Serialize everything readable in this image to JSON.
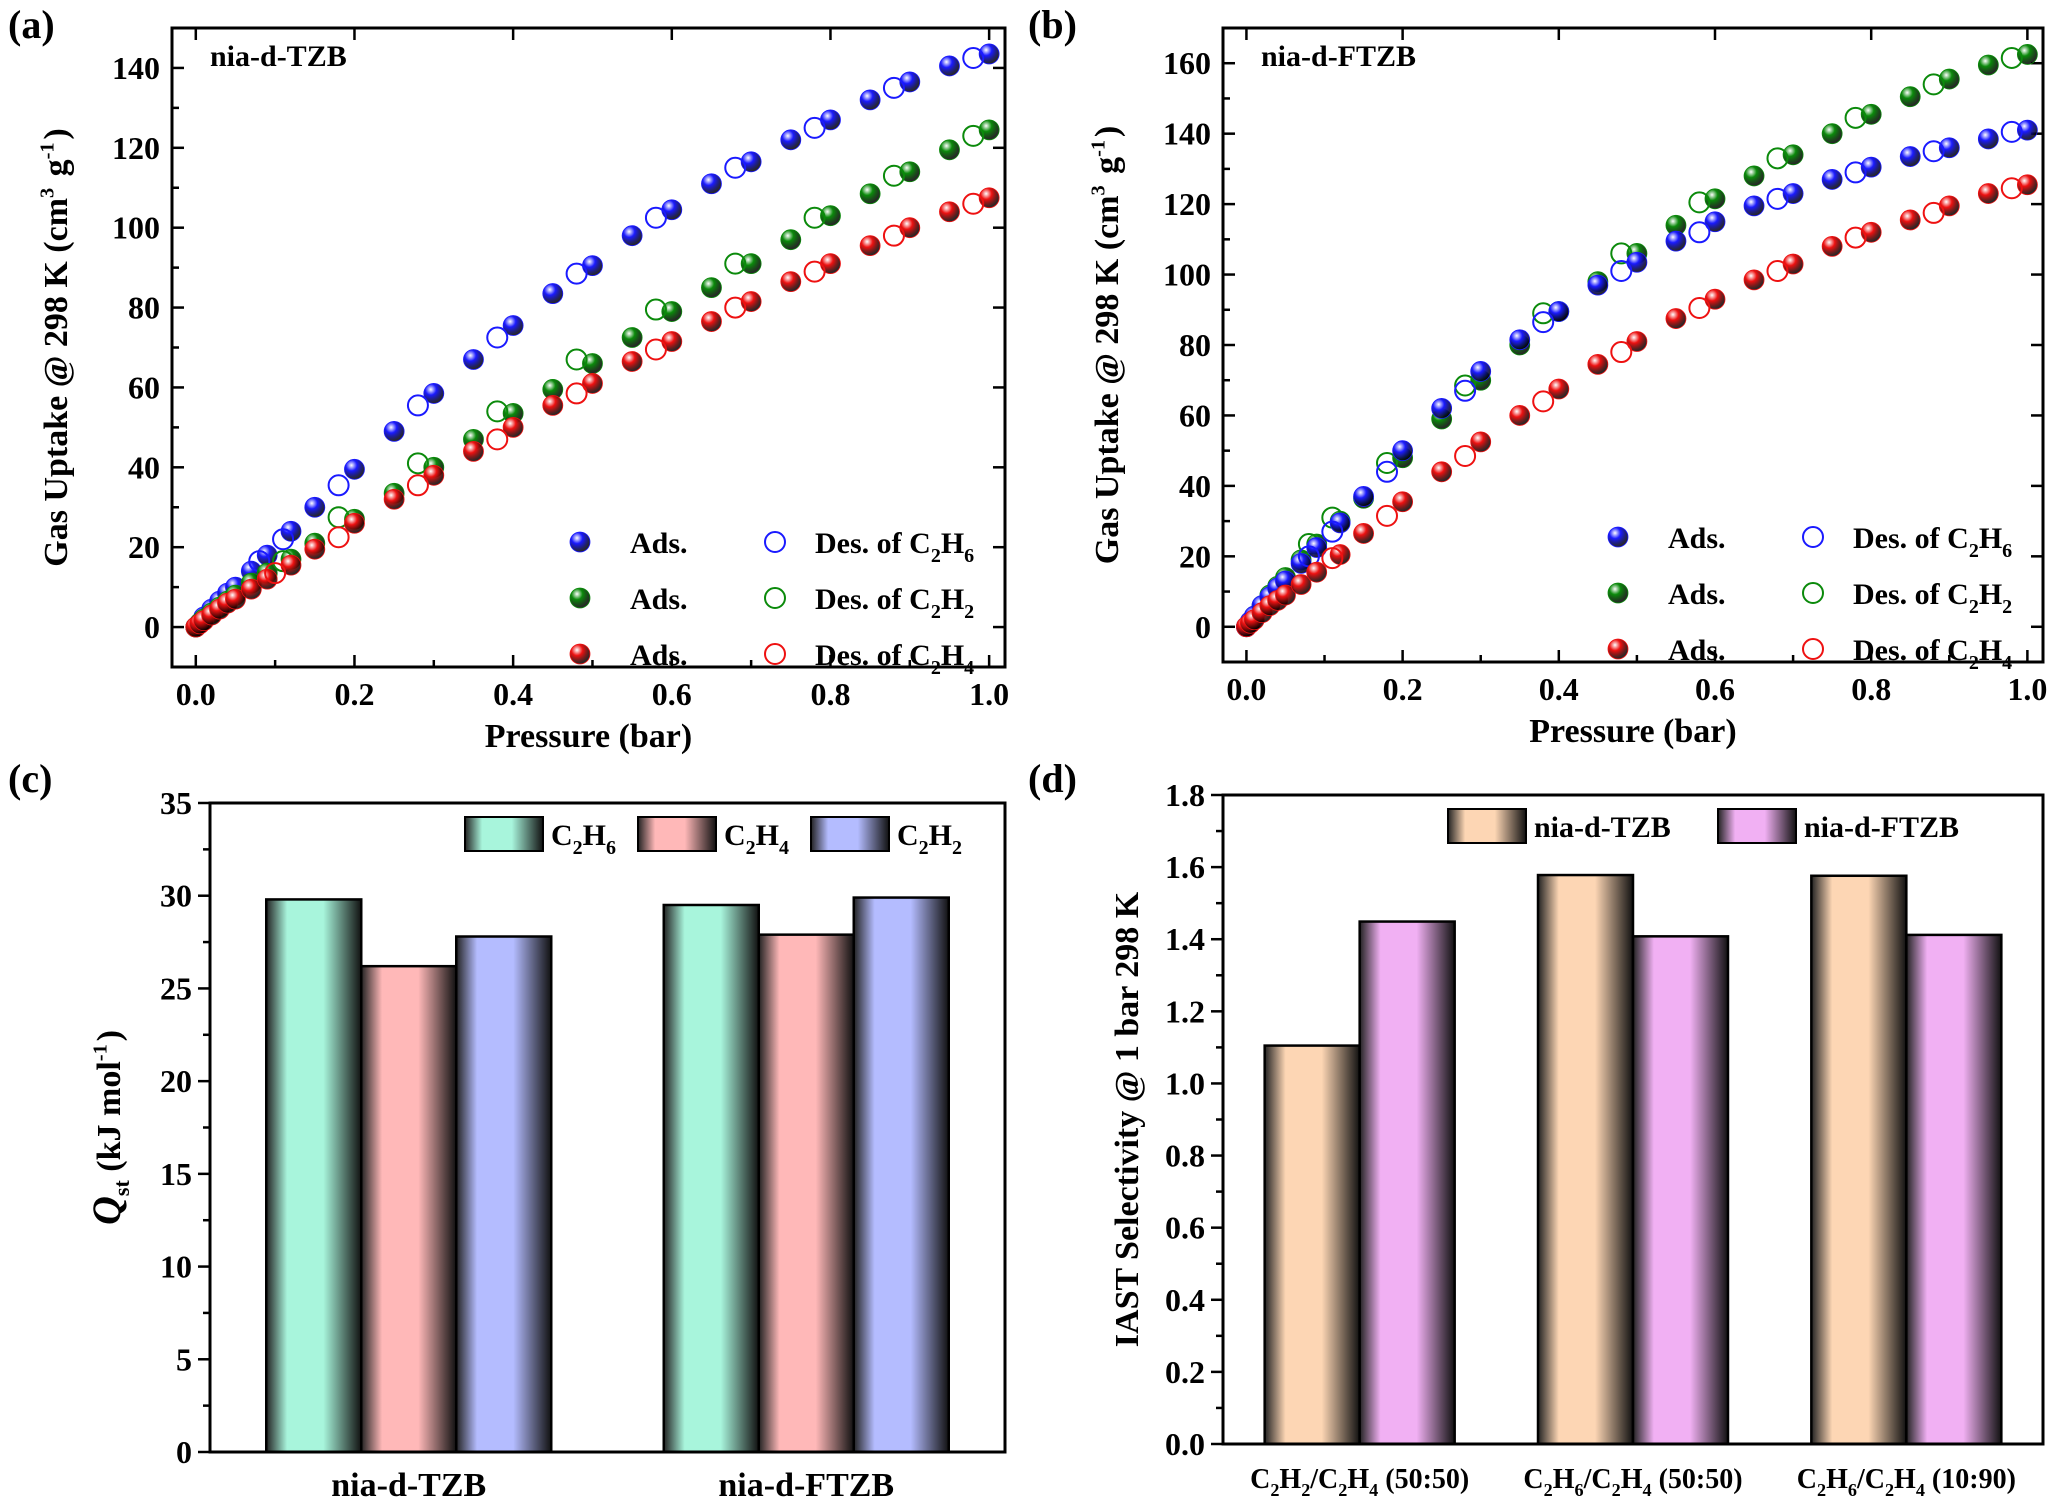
{
  "figure": {
    "panels": [
      "(a)",
      "(b)",
      "(c)",
      "(d)"
    ]
  },
  "colors": {
    "C2H6": "#1a1aff",
    "C2H2": "#0b8a0b",
    "C2H4": "#ee1111",
    "bar_C2H6": "#a8f5dc",
    "bar_C2H4": "#ffb8b8",
    "bar_C2H2": "#b4bcff",
    "bar_TZB": "#fdd6b4",
    "bar_FTZB": "#f1b0f3"
  },
  "chart_data": [
    {
      "id": "a",
      "type": "scatter",
      "panel_label": "(a)",
      "title": "nia-d-TZB",
      "xlabel": "Pressure (bar)",
      "ylabel": "Gas Uptake @ 298 K (cm3 g-1)",
      "xlim": [
        -0.03,
        1.02
      ],
      "ylim": [
        -10,
        150
      ],
      "xticks": [
        0.0,
        0.2,
        0.4,
        0.6,
        0.8,
        1.0
      ],
      "xtick_labels": [
        "0.0",
        "0.2",
        "0.4",
        "0.6",
        "0.8",
        "1.0"
      ],
      "yticks": [
        0,
        20,
        40,
        60,
        80,
        100,
        120,
        140
      ],
      "ytick_labels": [
        "0",
        "20",
        "40",
        "60",
        "80",
        "100",
        "120",
        "140"
      ],
      "legend_position": "bottom-right",
      "legend": [
        {
          "ads": "Ads.",
          "des": "Des. of ",
          "gas": "C2H6",
          "color": "C2H6"
        },
        {
          "ads": "Ads.",
          "des": "Des. of ",
          "gas": "C2H2",
          "color": "C2H2"
        },
        {
          "ads": "Ads.",
          "des": "Des. of ",
          "gas": "C2H4",
          "color": "C2H4"
        }
      ],
      "series": [
        {
          "gas": "C2H6",
          "mode": "adsorption",
          "color": "C2H6",
          "x": [
            0.0,
            0.005,
            0.01,
            0.02,
            0.03,
            0.04,
            0.05,
            0.07,
            0.09,
            0.12,
            0.15,
            0.2,
            0.25,
            0.3,
            0.35,
            0.4,
            0.45,
            0.5,
            0.55,
            0.6,
            0.65,
            0.7,
            0.75,
            0.8,
            0.85,
            0.9,
            0.95,
            1.0
          ],
          "y": [
            0,
            1,
            2.5,
            4.5,
            6.5,
            8.5,
            10,
            14,
            18,
            24,
            30,
            39.5,
            49,
            58.5,
            67,
            75.5,
            83.5,
            90.5,
            98,
            104.5,
            111,
            116.5,
            122,
            127,
            132,
            136.5,
            140.5,
            143.5
          ]
        },
        {
          "gas": "C2H6",
          "mode": "desorption",
          "color": "C2H6",
          "x": [
            0.98,
            0.88,
            0.78,
            0.68,
            0.58,
            0.48,
            0.38,
            0.28,
            0.18,
            0.11,
            0.08
          ],
          "y": [
            142.5,
            135,
            125,
            115,
            102.5,
            88.5,
            72.5,
            55.5,
            35.5,
            22,
            16.5
          ]
        },
        {
          "gas": "C2H2",
          "mode": "adsorption",
          "color": "C2H2",
          "x": [
            0.0,
            0.005,
            0.01,
            0.02,
            0.03,
            0.04,
            0.05,
            0.07,
            0.09,
            0.12,
            0.15,
            0.2,
            0.25,
            0.3,
            0.35,
            0.4,
            0.45,
            0.5,
            0.55,
            0.6,
            0.65,
            0.7,
            0.75,
            0.8,
            0.85,
            0.9,
            0.95,
            1.0
          ],
          "y": [
            0,
            1,
            2,
            3.5,
            5,
            6.5,
            8,
            11,
            13.5,
            17,
            21,
            27,
            33.5,
            40,
            47,
            53.5,
            59.5,
            66,
            72.5,
            79,
            85,
            91,
            97,
            103,
            108.5,
            114,
            119.5,
            124.5
          ]
        },
        {
          "gas": "C2H2",
          "mode": "desorption",
          "color": "C2H2",
          "x": [
            0.98,
            0.88,
            0.78,
            0.68,
            0.58,
            0.48,
            0.38,
            0.28,
            0.18,
            0.11
          ],
          "y": [
            123,
            113,
            102.5,
            91,
            79.5,
            67,
            54,
            41,
            27.5,
            16.5
          ]
        },
        {
          "gas": "C2H4",
          "mode": "adsorption",
          "color": "C2H4",
          "x": [
            0.0,
            0.005,
            0.01,
            0.02,
            0.03,
            0.04,
            0.05,
            0.07,
            0.09,
            0.12,
            0.15,
            0.2,
            0.25,
            0.3,
            0.35,
            0.4,
            0.45,
            0.5,
            0.55,
            0.6,
            0.65,
            0.7,
            0.75,
            0.8,
            0.85,
            0.9,
            0.95,
            1.0
          ],
          "y": [
            0,
            0.8,
            1.6,
            3,
            4.5,
            6,
            7,
            9.5,
            12,
            15.5,
            19.5,
            26,
            32,
            38,
            44,
            50,
            55.5,
            61,
            66.5,
            71.5,
            76.5,
            81.5,
            86.5,
            91,
            95.5,
            100,
            104,
            107.5
          ]
        },
        {
          "gas": "C2H4",
          "mode": "desorption",
          "color": "C2H4",
          "x": [
            0.98,
            0.88,
            0.78,
            0.68,
            0.58,
            0.48,
            0.38,
            0.28,
            0.18,
            0.1
          ],
          "y": [
            106,
            98,
            89,
            80,
            69.5,
            58.5,
            47,
            35.5,
            22.5,
            13.5
          ]
        }
      ]
    },
    {
      "id": "b",
      "type": "scatter",
      "panel_label": "(b)",
      "title": "nia-d-FTZB",
      "xlabel": "Pressure (bar)",
      "ylabel": "Gas Uptake @ 298 K (cm3 g-1)",
      "xlim": [
        -0.03,
        1.02
      ],
      "ylim": [
        -10,
        170
      ],
      "xticks": [
        0.0,
        0.2,
        0.4,
        0.6,
        0.8,
        1.0
      ],
      "xtick_labels": [
        "0.0",
        "0.2",
        "0.4",
        "0.6",
        "0.8",
        "1.0"
      ],
      "yticks": [
        0,
        20,
        40,
        60,
        80,
        100,
        120,
        140,
        160
      ],
      "ytick_labels": [
        "0",
        "20",
        "40",
        "60",
        "80",
        "100",
        "120",
        "140",
        "160"
      ],
      "legend_position": "bottom-right",
      "legend": [
        {
          "ads": "Ads.",
          "des": "Des. of ",
          "gas": "C2H6",
          "color": "C2H6"
        },
        {
          "ads": "Ads.",
          "des": "Des. of ",
          "gas": "C2H2",
          "color": "C2H2"
        },
        {
          "ads": "Ads.",
          "des": "Des. of ",
          "gas": "C2H4",
          "color": "C2H4"
        }
      ],
      "series": [
        {
          "gas": "C2H2",
          "mode": "adsorption",
          "color": "C2H2",
          "x": [
            0.0,
            0.005,
            0.01,
            0.02,
            0.03,
            0.04,
            0.05,
            0.07,
            0.09,
            0.12,
            0.15,
            0.2,
            0.25,
            0.3,
            0.35,
            0.4,
            0.45,
            0.5,
            0.55,
            0.6,
            0.65,
            0.7,
            0.75,
            0.8,
            0.85,
            0.9,
            0.95,
            1.0
          ],
          "y": [
            0,
            1.5,
            3,
            6,
            9,
            11.5,
            14,
            19,
            23.5,
            30,
            36.5,
            48,
            59,
            70,
            80,
            89.5,
            98,
            106,
            114,
            121.5,
            128,
            134,
            140,
            145.5,
            150.5,
            155.5,
            159.5,
            162.5
          ]
        },
        {
          "gas": "C2H2",
          "mode": "desorption",
          "color": "C2H2",
          "x": [
            0.98,
            0.88,
            0.78,
            0.68,
            0.58,
            0.48,
            0.38,
            0.28,
            0.18,
            0.11,
            0.08
          ],
          "y": [
            161.5,
            154,
            144.5,
            133,
            120.5,
            106,
            89,
            68.5,
            46.5,
            31,
            23.5
          ]
        },
        {
          "gas": "C2H6",
          "mode": "adsorption",
          "color": "C2H6",
          "x": [
            0.0,
            0.005,
            0.01,
            0.02,
            0.03,
            0.04,
            0.05,
            0.07,
            0.09,
            0.12,
            0.15,
            0.2,
            0.25,
            0.3,
            0.35,
            0.4,
            0.45,
            0.5,
            0.55,
            0.6,
            0.65,
            0.7,
            0.75,
            0.8,
            0.85,
            0.9,
            0.95,
            1.0
          ],
          "y": [
            0,
            1.5,
            3,
            6,
            8.5,
            11,
            13,
            18,
            22.5,
            29.5,
            37,
            50,
            62,
            72.5,
            81.5,
            89.5,
            97,
            103.5,
            109.5,
            115,
            119.5,
            123,
            127,
            130.5,
            133.5,
            136,
            138.5,
            141
          ]
        },
        {
          "gas": "C2H6",
          "mode": "desorption",
          "color": "C2H6",
          "x": [
            0.98,
            0.88,
            0.78,
            0.68,
            0.58,
            0.48,
            0.38,
            0.28,
            0.18,
            0.11,
            0.08
          ],
          "y": [
            140.5,
            135,
            129,
            121.5,
            112,
            101,
            86.5,
            67,
            44,
            27,
            20
          ]
        },
        {
          "gas": "C2H4",
          "mode": "adsorption",
          "color": "C2H4",
          "x": [
            0.0,
            0.005,
            0.01,
            0.02,
            0.03,
            0.04,
            0.05,
            0.07,
            0.09,
            0.12,
            0.15,
            0.2,
            0.25,
            0.3,
            0.35,
            0.4,
            0.45,
            0.5,
            0.55,
            0.6,
            0.65,
            0.7,
            0.75,
            0.8,
            0.85,
            0.9,
            0.95,
            1.0
          ],
          "y": [
            0,
            1,
            2,
            4,
            6,
            7.5,
            9,
            12,
            15.5,
            20.5,
            26.5,
            35.5,
            44,
            52.5,
            60,
            67.5,
            74.5,
            81,
            87.5,
            93,
            98.5,
            103,
            108,
            112,
            115.5,
            119.5,
            123,
            125.5
          ]
        },
        {
          "gas": "C2H4",
          "mode": "desorption",
          "color": "C2H4",
          "x": [
            0.98,
            0.88,
            0.78,
            0.68,
            0.58,
            0.48,
            0.38,
            0.28,
            0.18,
            0.11
          ],
          "y": [
            124.5,
            117.5,
            110.5,
            101,
            90.5,
            78,
            64,
            48.5,
            31.5,
            19.5
          ]
        }
      ]
    },
    {
      "id": "c",
      "type": "bar",
      "panel_label": "(c)",
      "xlabel": "",
      "ylabel": "Qst (kJ mol-1)",
      "ylim": [
        0,
        35
      ],
      "yticks": [
        0,
        5,
        10,
        15,
        20,
        25,
        30,
        35
      ],
      "ytick_labels": [
        "0",
        "5",
        "10",
        "15",
        "20",
        "25",
        "30",
        "35"
      ],
      "categories": [
        "nia-d-TZB",
        "nia-d-FTZB"
      ],
      "legend_position": "top-right",
      "series": [
        {
          "name": "C2H6",
          "color": "bar_C2H6",
          "values": [
            29.8,
            29.5
          ]
        },
        {
          "name": "C2H4",
          "color": "bar_C2H4",
          "values": [
            26.2,
            27.9
          ]
        },
        {
          "name": "C2H2",
          "color": "bar_C2H2",
          "values": [
            27.8,
            29.9
          ]
        }
      ]
    },
    {
      "id": "d",
      "type": "bar",
      "panel_label": "(d)",
      "xlabel": "",
      "ylabel": "IAST Selectivity @ 1 bar 298 K",
      "ylim": [
        0,
        1.8
      ],
      "yticks": [
        0.0,
        0.2,
        0.4,
        0.6,
        0.8,
        1.0,
        1.2,
        1.4,
        1.6,
        1.8
      ],
      "ytick_labels": [
        "0.0",
        "0.2",
        "0.4",
        "0.6",
        "0.8",
        "1.0",
        "1.2",
        "1.4",
        "1.6",
        "1.8"
      ],
      "categories": [
        "C2H2/C2H4 (50:50)",
        "C2H6/C2H4 (50:50)",
        "C2H6/C2H4 (10:90)"
      ],
      "legend_position": "top-right",
      "series": [
        {
          "name": "nia-d-TZB",
          "color": "bar_TZB",
          "values": [
            1.105,
            1.578,
            1.576
          ]
        },
        {
          "name": "nia-d-FTZB",
          "color": "bar_FTZB",
          "values": [
            1.449,
            1.408,
            1.412
          ]
        }
      ]
    }
  ]
}
